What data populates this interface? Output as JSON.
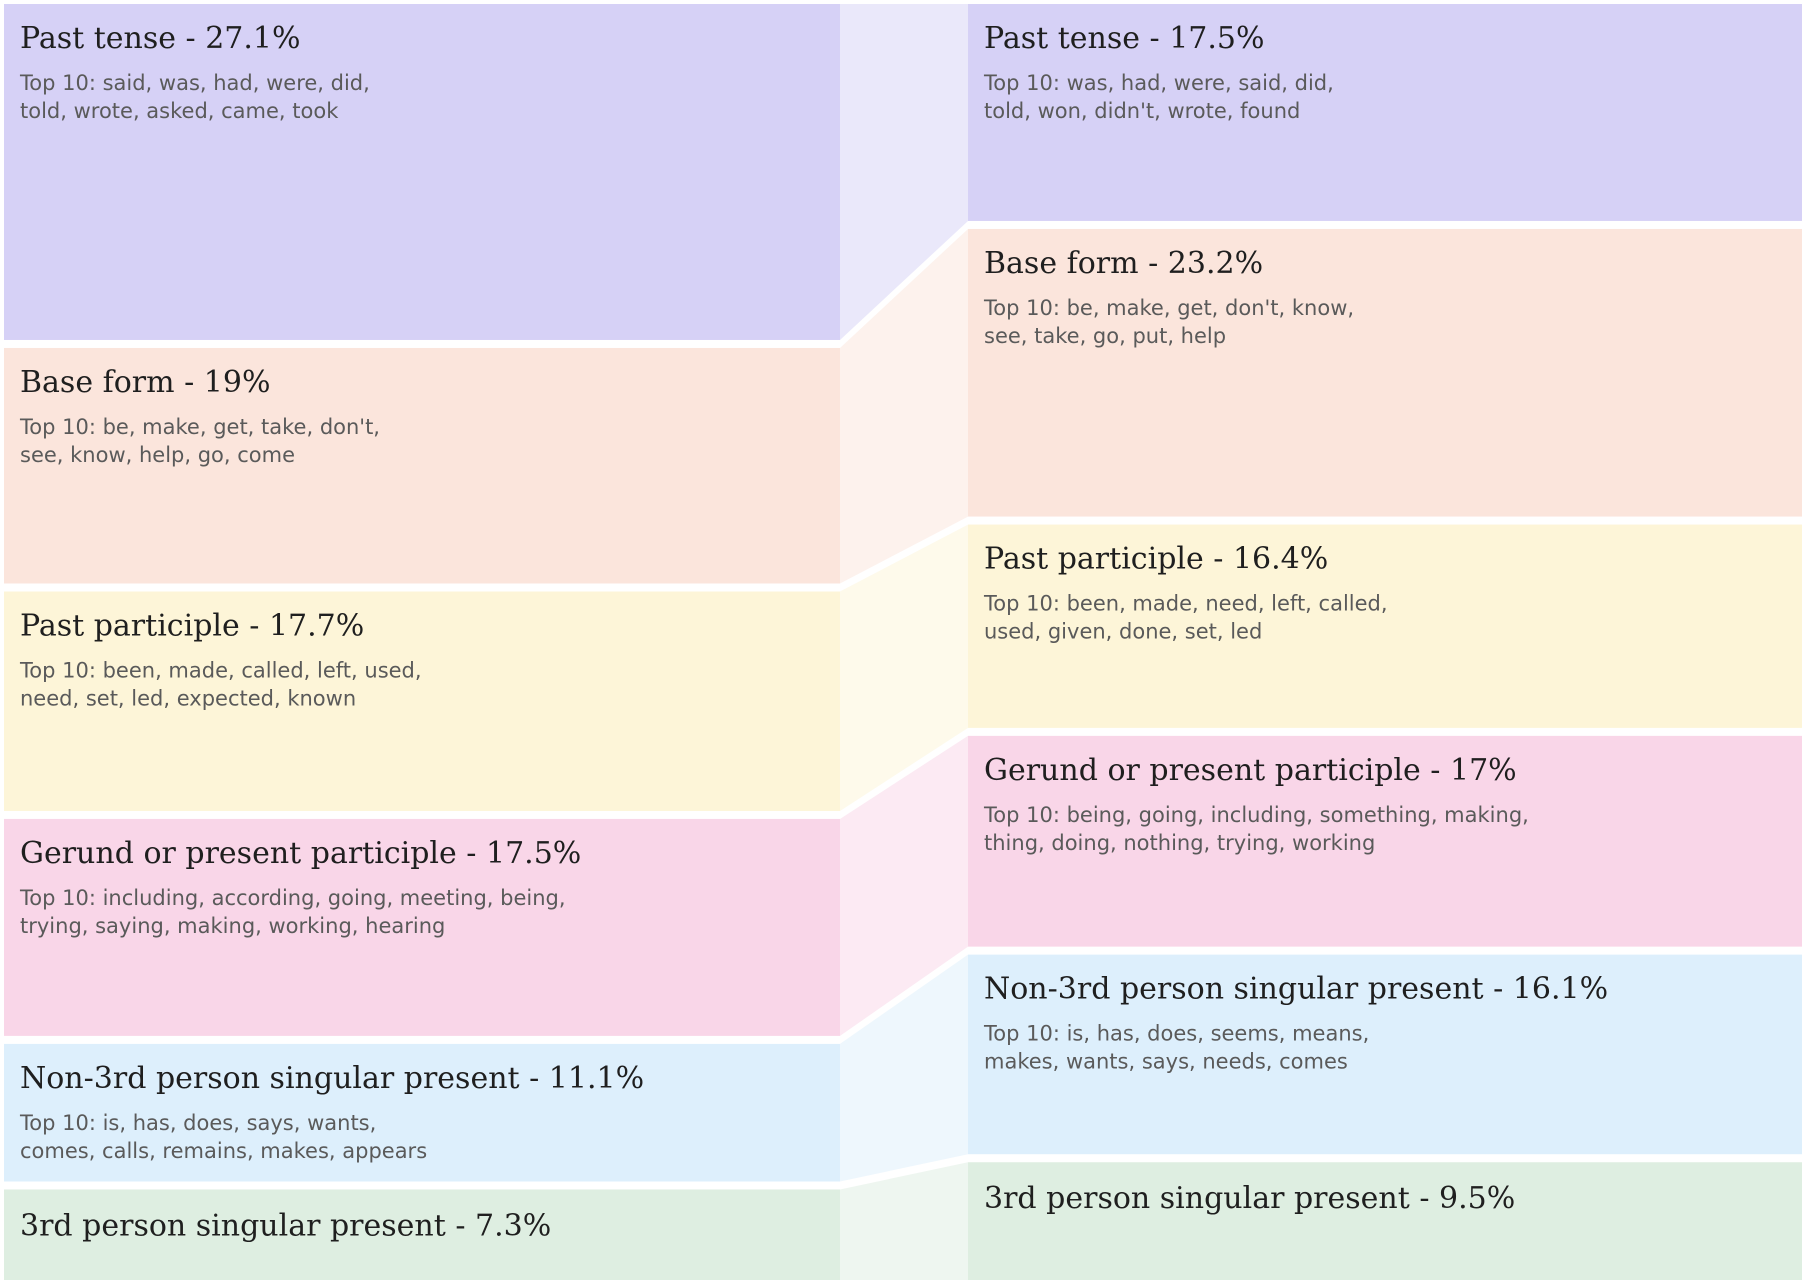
{
  "chart_data": {
    "type": "sankey-comparison",
    "colors": {
      "Past tense": "#d6d1f6",
      "Base form": "#fbe5dc",
      "Past participle": "#fdf5d8",
      "Gerund or present participle": "#f9d6e8",
      "Non-3rd person singular present": "#ddeffc",
      "3rd person singular present": "#deeee1"
    },
    "left": [
      {
        "category": "Past tense",
        "value": 27.1,
        "label": "Past tense - 27.1%",
        "top10": [
          "Top 10: said, was, had, were, did,",
          "told, wrote, asked, came, took"
        ]
      },
      {
        "category": "Base form",
        "value": 19,
        "label": "Base form - 19%",
        "top10": [
          "Top 10: be, make, get, take, don't,",
          "see, know, help, go, come"
        ]
      },
      {
        "category": "Past participle",
        "value": 17.7,
        "label": "Past participle - 17.7%",
        "top10": [
          "Top 10: been, made, called, left, used,",
          "need, set, led, expected, known"
        ]
      },
      {
        "category": "Gerund or present participle",
        "value": 17.5,
        "label": "Gerund or present participle - 17.5%",
        "top10": [
          "Top 10: including, according, going, meeting, being,",
          "trying, saying, making, working, hearing"
        ]
      },
      {
        "category": "Non-3rd person singular present",
        "value": 11.1,
        "label": "Non-3rd person singular present - 11.1%",
        "top10": [
          "Top 10: is, has, does, says, wants,",
          "comes, calls, remains, makes, appears"
        ]
      },
      {
        "category": "3rd person singular present",
        "value": 7.3,
        "label": "3rd person singular present - 7.3%",
        "top10": []
      }
    ],
    "right": [
      {
        "category": "Past tense",
        "value": 17.5,
        "label": "Past tense - 17.5%",
        "top10": [
          "Top 10: was, had, were, said, did,",
          "told, won, didn't, wrote, found"
        ]
      },
      {
        "category": "Base form",
        "value": 23.2,
        "label": "Base form - 23.2%",
        "top10": [
          "Top 10: be, make, get, don't, know,",
          "see, take, go, put, help"
        ]
      },
      {
        "category": "Past participle",
        "value": 16.4,
        "label": "Past participle - 16.4%",
        "top10": [
          "Top 10: been, made, need, left, called,",
          "used, given, done, set, led"
        ]
      },
      {
        "category": "Gerund or present participle",
        "value": 17,
        "label": "Gerund or present participle - 17%",
        "top10": [
          "Top 10: being, going, including, something, making,",
          "thing, doing, nothing, trying, working"
        ]
      },
      {
        "category": "Non-3rd person singular present",
        "value": 16.1,
        "label": "Non-3rd person singular present - 16.1%",
        "top10": [
          "Top 10: is, has, does, seems, means,",
          "makes, wants, says, needs, comes"
        ]
      },
      {
        "category": "3rd person singular present",
        "value": 9.5,
        "label": "3rd person singular present - 9.5%",
        "top10": []
      }
    ]
  }
}
